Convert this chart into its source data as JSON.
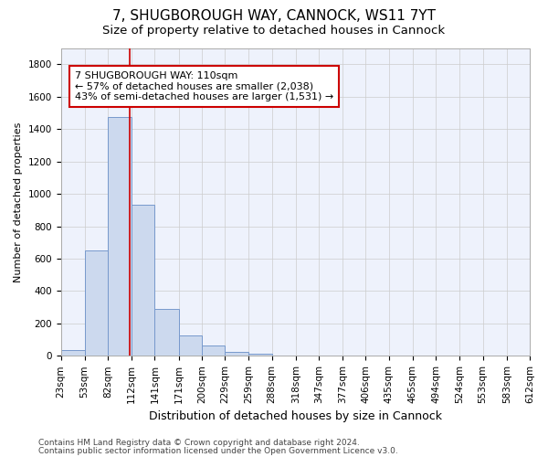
{
  "title": "7, SHUGBOROUGH WAY, CANNOCK, WS11 7YT",
  "subtitle": "Size of property relative to detached houses in Cannock",
  "xlabel": "Distribution of detached houses by size in Cannock",
  "ylabel": "Number of detached properties",
  "bin_edges": [
    23,
    53,
    82,
    112,
    141,
    171,
    200,
    229,
    259,
    288,
    318,
    347,
    377,
    406,
    435,
    465,
    494,
    524,
    553,
    583,
    612
  ],
  "bar_heights": [
    38,
    650,
    1475,
    935,
    290,
    125,
    62,
    22,
    15,
    0,
    0,
    0,
    0,
    0,
    0,
    0,
    0,
    0,
    0,
    0
  ],
  "bar_color": "#ccd9ee",
  "bar_edge_color": "#7799cc",
  "vline_x": 110,
  "vline_color": "#cc0000",
  "annotation_text": "7 SHUGBOROUGH WAY: 110sqm\n← 57% of detached houses are smaller (2,038)\n43% of semi-detached houses are larger (1,531) →",
  "annotation_box_color": "#ffffff",
  "annotation_box_edge": "#cc0000",
  "ylim": [
    0,
    1900
  ],
  "yticks": [
    0,
    200,
    400,
    600,
    800,
    1000,
    1200,
    1400,
    1600,
    1800
  ],
  "footer1": "Contains HM Land Registry data © Crown copyright and database right 2024.",
  "footer2": "Contains public sector information licensed under the Open Government Licence v3.0.",
  "title_fontsize": 11,
  "subtitle_fontsize": 9.5,
  "ylabel_fontsize": 8,
  "xlabel_fontsize": 9,
  "tick_fontsize": 7.5,
  "annotation_fontsize": 8,
  "footer_fontsize": 6.5,
  "bg_color": "#eef2fc"
}
